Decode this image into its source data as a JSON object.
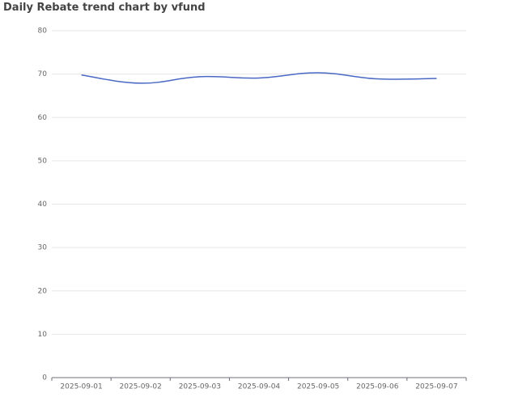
{
  "chart_data": {
    "type": "line",
    "title": "Daily Rebate trend chart by vfund",
    "categories": [
      "2025-09-01",
      "2025-09-02",
      "2025-09-03",
      "2025-09-04",
      "2025-09-05",
      "2025-09-06",
      "2025-09-07"
    ],
    "series": [
      {
        "name": "Daily Rebate",
        "color": "#4a68c4",
        "values": [
          69.8,
          67.9,
          69.4,
          69.1,
          70.3,
          68.9,
          69.0
        ]
      }
    ],
    "ylim": [
      0,
      80
    ],
    "yticks": [
      0,
      10,
      20,
      30,
      40,
      50,
      60,
      70,
      80
    ],
    "grid": true
  }
}
